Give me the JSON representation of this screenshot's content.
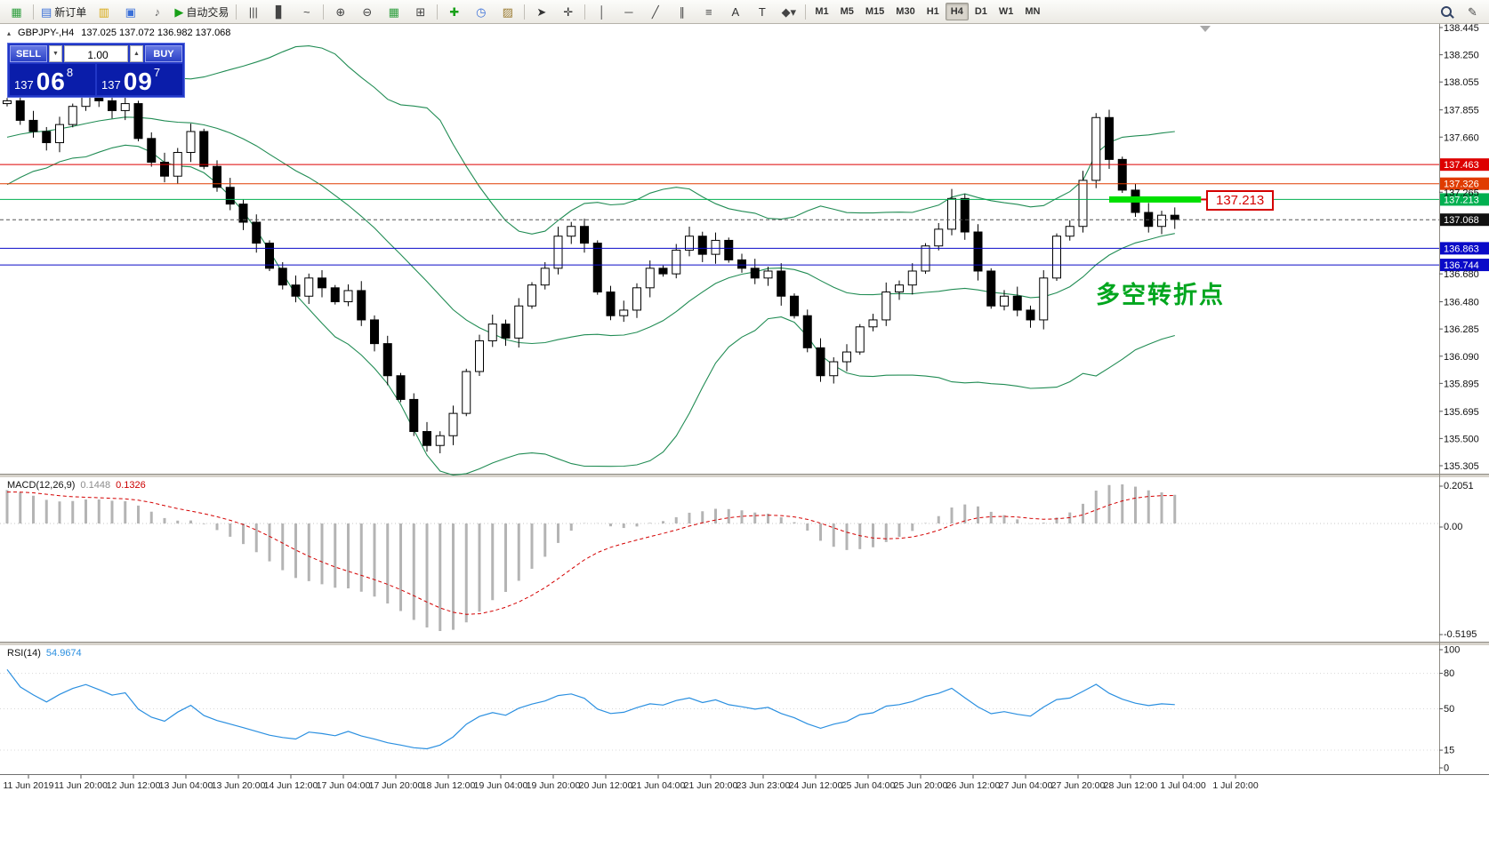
{
  "toolbar": {
    "items": [
      {
        "type": "icon",
        "name": "app-icon",
        "glyph": "▦",
        "color": "#2e9e3e"
      },
      {
        "type": "sep"
      },
      {
        "type": "button",
        "name": "new-order-button",
        "glyph": "▤",
        "color": "#3a6fd8",
        "label": "新订单"
      },
      {
        "type": "icon",
        "name": "profiles-icon",
        "glyph": "▥",
        "color": "#d8a810"
      },
      {
        "type": "icon",
        "name": "charts-icon",
        "glyph": "▣",
        "color": "#3a6fd8"
      },
      {
        "type": "icon",
        "name": "sound-icon",
        "glyph": "♪",
        "color": "#666666"
      },
      {
        "type": "button",
        "name": "autotrade-button",
        "glyph": "▶",
        "color": "#18a018",
        "label": "自动交易"
      },
      {
        "type": "sep"
      },
      {
        "type": "icon",
        "name": "bar-chart-icon",
        "glyph": "|||",
        "color": "#444444"
      },
      {
        "type": "icon",
        "name": "candlestick-chart-icon",
        "glyph": "▋",
        "color": "#444444"
      },
      {
        "type": "icon",
        "name": "line-chart-icon",
        "glyph": "~",
        "color": "#444444"
      },
      {
        "type": "sep"
      },
      {
        "type": "icon",
        "name": "zoom-in-icon",
        "glyph": "⊕",
        "color": "#444444"
      },
      {
        "type": "icon",
        "name": "zoom-out-icon",
        "glyph": "⊖",
        "color": "#444444"
      },
      {
        "type": "icon",
        "name": "grid-icon",
        "glyph": "▦",
        "color": "#2e9e3e"
      },
      {
        "type": "icon",
        "name": "tile-windows-icon",
        "glyph": "⊞",
        "color": "#444444"
      },
      {
        "type": "sep"
      },
      {
        "type": "icon",
        "name": "indicators-icon",
        "glyph": "✚",
        "color": "#18a018"
      },
      {
        "type": "icon",
        "name": "periods-icon",
        "glyph": "◷",
        "color": "#3a6fd8"
      },
      {
        "type": "icon",
        "name": "templates-icon",
        "glyph": "▨",
        "color": "#9a7a30"
      },
      {
        "type": "sep"
      },
      {
        "type": "icon",
        "name": "cursor-icon",
        "glyph": "➤",
        "color": "#333333"
      },
      {
        "type": "icon",
        "name": "crosshair-icon",
        "glyph": "✛",
        "color": "#333333"
      },
      {
        "type": "sep"
      },
      {
        "type": "icon",
        "name": "vertical-line-icon",
        "glyph": "│",
        "color": "#444444"
      },
      {
        "type": "icon",
        "name": "horizontal-line-icon",
        "glyph": "─",
        "color": "#444444"
      },
      {
        "type": "icon",
        "name": "trendline-icon",
        "glyph": "╱",
        "color": "#444444"
      },
      {
        "type": "icon",
        "name": "channel-icon",
        "glyph": "∥",
        "color": "#444444"
      },
      {
        "type": "icon",
        "name": "fibonacci-icon",
        "glyph": "≡",
        "color": "#444444"
      },
      {
        "type": "icon",
        "name": "text-icon",
        "glyph": "A",
        "color": "#333333"
      },
      {
        "type": "icon",
        "name": "text-label-icon",
        "glyph": "T",
        "color": "#333333"
      },
      {
        "type": "icon",
        "name": "arrows-icon",
        "glyph": "◆▾",
        "color": "#444444"
      },
      {
        "type": "sep"
      },
      {
        "type": "timeframes"
      },
      {
        "type": "spacer"
      },
      {
        "type": "icon",
        "name": "search-icon",
        "glyph": "",
        "shape": "magnifier"
      },
      {
        "type": "icon",
        "name": "edit-icon",
        "glyph": "✎",
        "color": "#444444"
      }
    ],
    "timeframes": [
      "M1",
      "M5",
      "M15",
      "M30",
      "H1",
      "H4",
      "D1",
      "W1",
      "MN"
    ],
    "active_timeframe": "H4"
  },
  "trade_panel": {
    "sell_label": "SELL",
    "buy_label": "BUY",
    "volume": "1.00",
    "dec_glyph": "▼",
    "inc_glyph": "▲",
    "sell_price": {
      "prefix": "137",
      "big": "06",
      "sup": "8"
    },
    "buy_price": {
      "prefix": "137",
      "big": "09",
      "sup": "7"
    }
  },
  "chart_data": {
    "type": "candlestick",
    "symbol_label": "GBPJPY-,H4",
    "ohlc_text": "137.025 137.072 136.982 137.068",
    "price_axis": {
      "min": 135.305,
      "max": 138.445,
      "ticks": [
        "138.445",
        "138.250",
        "138.055",
        "137.855",
        "137.660",
        "137.265",
        "136.680",
        "136.480",
        "136.285",
        "136.090",
        "135.895",
        "135.695",
        "135.500",
        "135.305"
      ],
      "extra_tick": "137.265"
    },
    "x_labels": [
      "11 Jun 2019",
      "11 Jun 20:00",
      "12 Jun 12:00",
      "13 Jun 04:00",
      "13 Jun 20:00",
      "14 Jun 12:00",
      "17 Jun 04:00",
      "17 Jun 20:00",
      "18 Jun 12:00",
      "19 Jun 04:00",
      "19 Jun 20:00",
      "20 Jun 12:00",
      "21 Jun 04:00",
      "21 Jun 20:00",
      "23 Jun 23:00",
      "24 Jun 12:00",
      "25 Jun 04:00",
      "25 Jun 20:00",
      "26 Jun 12:00",
      "27 Jun 04:00",
      "27 Jun 20:00",
      "28 Jun 12:00",
      "1 Jul 04:00",
      "1 Jul 20:00"
    ],
    "prehistory": [
      137.0,
      137.06,
      137.12,
      137.18,
      137.24,
      137.3,
      137.27,
      137.34,
      137.4,
      137.47,
      137.44,
      137.52,
      137.58,
      137.53,
      137.58,
      137.64,
      137.7,
      137.64,
      137.69,
      137.75,
      137.8,
      137.74,
      137.79,
      137.85,
      137.9,
      137.9
    ],
    "closes": [
      137.92,
      137.78,
      137.7,
      137.62,
      137.75,
      137.88,
      137.98,
      137.92,
      137.85,
      137.9,
      137.65,
      137.48,
      137.38,
      137.55,
      137.7,
      137.45,
      137.3,
      137.18,
      137.05,
      136.9,
      136.72,
      136.6,
      136.52,
      136.65,
      136.58,
      136.48,
      136.56,
      136.35,
      136.18,
      135.95,
      135.78,
      135.55,
      135.45,
      135.52,
      135.68,
      135.98,
      136.2,
      136.32,
      136.22,
      136.45,
      136.6,
      136.72,
      136.95,
      137.02,
      136.9,
      136.55,
      136.38,
      136.42,
      136.58,
      136.72,
      136.68,
      136.85,
      136.95,
      136.82,
      136.92,
      136.78,
      136.72,
      136.65,
      136.7,
      136.52,
      136.38,
      136.15,
      135.95,
      136.05,
      136.12,
      136.3,
      136.35,
      136.55,
      136.6,
      136.7,
      136.88,
      137.0,
      137.22,
      136.98,
      136.7,
      136.45,
      136.52,
      136.42,
      136.35,
      136.65,
      136.95,
      137.02,
      137.35,
      137.8,
      137.5,
      137.28,
      137.12,
      137.02,
      137.1,
      137.07
    ],
    "indicators": {
      "bollinger": {
        "period": 20,
        "deviation": 2,
        "color": "#218c54"
      },
      "macd": {
        "label": "MACD(12,26,9)",
        "fast": 12,
        "slow": 26,
        "signal": 9,
        "main_value": "0.1448",
        "signal_value": "0.1326",
        "scale": [
          "0.2051",
          "0.00",
          "-0.5195"
        ],
        "bar_color": "#b4b4b4",
        "signal_color": "#d40000"
      },
      "rsi": {
        "label": "RSI(14)",
        "period": 14,
        "value": "54.9674",
        "levels": [
          "100",
          "80",
          "50",
          "15",
          "0"
        ],
        "line_color": "#2a8fe0"
      }
    },
    "levels": [
      {
        "price": 137.463,
        "color": "#dd0000",
        "label": "137.463",
        "style": "solid"
      },
      {
        "price": 137.326,
        "color": "#e03c00",
        "label": "137.326",
        "style": "solid"
      },
      {
        "price": 137.213,
        "color": "#00b050",
        "label": "137.213",
        "style": "solid"
      },
      {
        "price": 137.068,
        "color": "#111111",
        "label": "137.068",
        "style": "bid"
      },
      {
        "price": 136.863,
        "color": "#0a0ac8",
        "label": "136.863",
        "style": "solid"
      },
      {
        "price": 136.744,
        "color": "#0a0ac8",
        "label": "136.744",
        "style": "solid"
      }
    ],
    "highlight_segment": {
      "price": 137.213,
      "start_index": 84,
      "end_index": 91,
      "color": "#00e000"
    },
    "annotations": [
      {
        "text": "多空转折点",
        "color": "#00a61e",
        "type": "text"
      },
      {
        "text": "137.213",
        "color": "#d40000",
        "type": "callout"
      }
    ]
  }
}
